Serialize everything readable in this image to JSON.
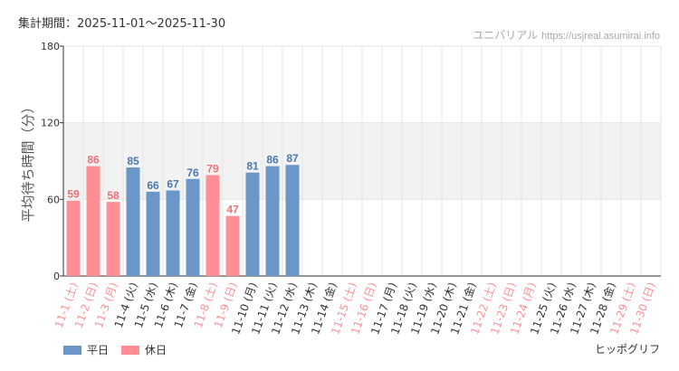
{
  "header": {
    "period": "集計期間：2025-11-01～2025-11-30",
    "brand_name": "ユニバリアル",
    "brand_site": "https://usjreal.asumirai.info"
  },
  "attraction_name": "ヒッポグリフ",
  "legend": [
    {
      "label": "平日",
      "color": "#6b96c8"
    },
    {
      "label": "休日",
      "color": "#ff8f95"
    }
  ],
  "colors": {
    "weekday": "#6b96c8",
    "holiday": "#ff8f95",
    "weekday_label": "#4a78b0",
    "holiday_label": "#f07078",
    "axis_weekday_text": "#333333",
    "axis_holiday_text": "#ff8f95",
    "band": "#f2f2f2",
    "grid": "#e6e6e6"
  },
  "chart_data": {
    "type": "bar",
    "ylabel": "平均待ち時間（分）",
    "ylim": [
      0,
      180
    ],
    "yticks": [
      0,
      60,
      120,
      180
    ],
    "band": [
      60,
      120
    ],
    "categories": [
      "11-1 (土)",
      "11-2 (日)",
      "11-3 (月)",
      "11-4 (火)",
      "11-5 (水)",
      "11-6 (木)",
      "11-7 (金)",
      "11-8 (土)",
      "11-9 (日)",
      "11-10 (月)",
      "11-11 (火)",
      "11-12 (水)",
      "11-13 (木)",
      "11-14 (金)",
      "11-15 (土)",
      "11-16 (日)",
      "11-17 (月)",
      "11-18 (火)",
      "11-19 (水)",
      "11-20 (木)",
      "11-21 (金)",
      "11-22 (土)",
      "11-23 (日)",
      "11-24 (月)",
      "11-25 (火)",
      "11-26 (水)",
      "11-27 (木)",
      "11-28 (金)",
      "11-29 (土)",
      "11-30 (日)"
    ],
    "values": [
      59,
      86,
      58,
      85,
      66,
      67,
      76,
      79,
      47,
      81,
      86,
      87,
      null,
      null,
      null,
      null,
      null,
      null,
      null,
      null,
      null,
      null,
      null,
      null,
      null,
      null,
      null,
      null,
      null,
      null
    ],
    "holiday": [
      true,
      true,
      true,
      false,
      false,
      false,
      false,
      true,
      true,
      false,
      false,
      false,
      false,
      false,
      true,
      true,
      false,
      false,
      false,
      false,
      false,
      true,
      true,
      true,
      false,
      false,
      false,
      false,
      true,
      true
    ]
  }
}
